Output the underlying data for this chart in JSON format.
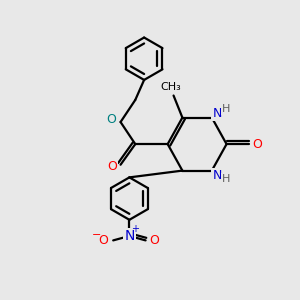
{
  "background_color": "#e8e8e8",
  "bond_color": "#000000",
  "bond_width": 1.6,
  "atom_colors": {
    "N": "#0000cd",
    "O_red": "#ff0000",
    "O_teal": "#008080",
    "C": "#000000",
    "H_gray": "#606060"
  },
  "figsize": [
    3.0,
    3.0
  ],
  "dpi": 100,
  "xlim": [
    0,
    10
  ],
  "ylim": [
    0,
    10
  ]
}
